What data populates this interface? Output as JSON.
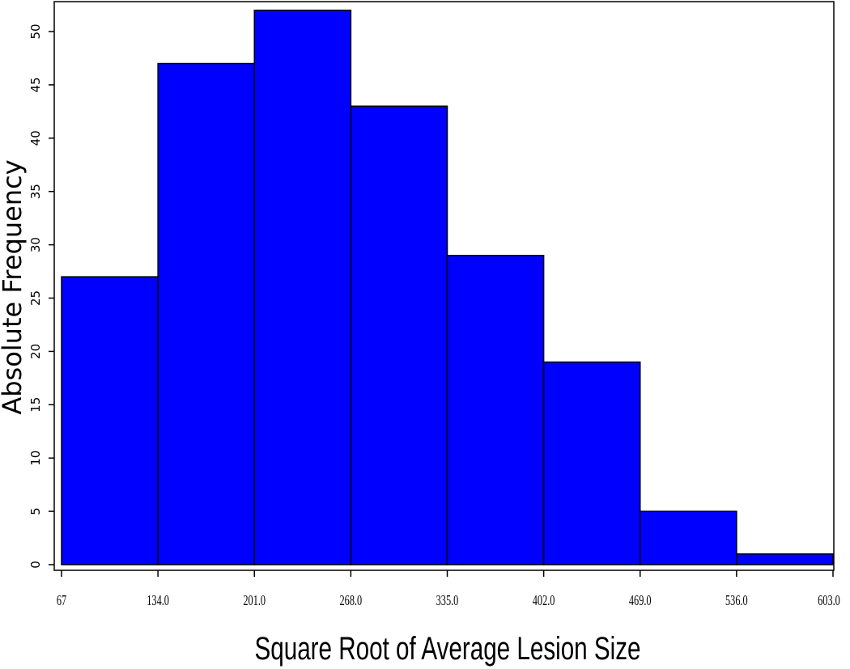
{
  "chart_data": {
    "type": "bar",
    "title": "",
    "xlabel": "Square Root of Average Lesion Size",
    "ylabel": "Absolute Frequency",
    "bin_edges": [
      67,
      134,
      201,
      268,
      335,
      402,
      469,
      536,
      603
    ],
    "x_tick_labels": [
      "67",
      "134.0",
      "201.0",
      "268.0",
      "335.0",
      "402.0",
      "469.0",
      "536.0",
      "603.0"
    ],
    "values": [
      27,
      47,
      52,
      43,
      29,
      19,
      5,
      1
    ],
    "y_ticks": [
      0,
      5,
      10,
      15,
      20,
      25,
      30,
      35,
      40,
      45,
      50
    ],
    "y_tick_labels": [
      "0",
      "5",
      "10",
      "15",
      "20",
      "25",
      "30",
      "35",
      "40",
      "45",
      "50"
    ],
    "xlim": [
      67,
      603
    ],
    "ylim": [
      0,
      52.5
    ],
    "grid": false,
    "bar_color": "#0000ff",
    "edge_color": "#000000"
  }
}
